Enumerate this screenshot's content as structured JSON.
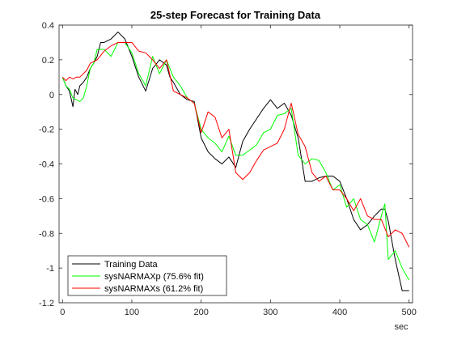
{
  "chart_data": {
    "type": "line",
    "title": "25-step Forecast for Training Data",
    "xlabel": "sec",
    "ylabel": "",
    "xlim": [
      -5,
      505
    ],
    "ylim": [
      -1.2,
      0.4
    ],
    "xticks": [
      0,
      100,
      200,
      300,
      400,
      500
    ],
    "yticks": [
      -1.2,
      -1,
      -0.8,
      -0.6,
      -0.4,
      -0.2,
      0,
      0.2,
      0.4
    ],
    "ytick_labels": [
      "-1.2",
      "-1",
      "-0.8",
      "-0.6",
      "-0.4",
      "-0.2",
      "0",
      "0.2",
      "0.4"
    ],
    "grid": false,
    "legend_position": "bottom-left",
    "series": [
      {
        "name": "Training Data",
        "color": "#000000",
        "x": [
          0,
          5,
          10,
          15,
          18,
          22,
          25,
          30,
          35,
          40,
          45,
          50,
          55,
          60,
          70,
          80,
          90,
          100,
          110,
          120,
          130,
          140,
          150,
          155,
          160,
          170,
          180,
          190,
          200,
          210,
          220,
          230,
          240,
          250,
          260,
          270,
          280,
          290,
          300,
          310,
          320,
          330,
          340,
          350,
          360,
          370,
          380,
          390,
          400,
          410,
          420,
          430,
          440,
          450,
          460,
          465,
          470,
          480,
          490,
          500
        ],
        "y": [
          0.1,
          0.05,
          0.02,
          -0.07,
          0.03,
          0.0,
          0.05,
          0.07,
          0.1,
          0.15,
          0.18,
          0.22,
          0.3,
          0.3,
          0.32,
          0.36,
          0.32,
          0.22,
          0.1,
          0.02,
          0.15,
          0.2,
          0.17,
          0.1,
          0.07,
          0.0,
          -0.03,
          -0.04,
          -0.25,
          -0.33,
          -0.37,
          -0.4,
          -0.36,
          -0.42,
          -0.27,
          -0.2,
          -0.14,
          -0.08,
          -0.03,
          -0.08,
          -0.05,
          -0.12,
          -0.25,
          -0.5,
          -0.5,
          -0.48,
          -0.47,
          -0.47,
          -0.5,
          -0.6,
          -0.72,
          -0.78,
          -0.75,
          -0.7,
          -0.66,
          -0.66,
          -0.73,
          -0.95,
          -1.13,
          -1.13
        ]
      },
      {
        "name": "sysNARMAXp (75.6% fit)",
        "color": "#00ff00",
        "x": [
          0,
          5,
          10,
          15,
          20,
          25,
          30,
          35,
          40,
          45,
          50,
          60,
          70,
          80,
          90,
          100,
          110,
          120,
          130,
          140,
          150,
          160,
          170,
          180,
          190,
          200,
          210,
          220,
          230,
          240,
          250,
          260,
          270,
          280,
          290,
          300,
          310,
          320,
          330,
          340,
          350,
          360,
          370,
          380,
          390,
          400,
          410,
          420,
          430,
          440,
          450,
          460,
          465,
          470,
          480,
          490,
          500
        ],
        "y": [
          0.1,
          0.05,
          0.03,
          -0.02,
          -0.03,
          -0.04,
          -0.02,
          0.05,
          0.15,
          0.18,
          0.26,
          0.26,
          0.22,
          0.3,
          0.3,
          0.24,
          0.12,
          0.05,
          0.22,
          0.12,
          0.2,
          0.1,
          0.05,
          -0.02,
          -0.05,
          -0.2,
          -0.25,
          -0.28,
          -0.33,
          -0.24,
          -0.35,
          -0.35,
          -0.32,
          -0.29,
          -0.22,
          -0.2,
          -0.12,
          -0.11,
          -0.08,
          -0.35,
          -0.4,
          -0.37,
          -0.38,
          -0.45,
          -0.55,
          -0.52,
          -0.65,
          -0.6,
          -0.72,
          -0.75,
          -0.85,
          -0.7,
          -0.63,
          -0.95,
          -0.9,
          -1.0,
          -1.07
        ]
      },
      {
        "name": "sysNARMAXs (61.2% fit)",
        "color": "#ff0000",
        "x": [
          0,
          5,
          10,
          15,
          20,
          25,
          30,
          35,
          40,
          50,
          60,
          70,
          80,
          90,
          100,
          110,
          120,
          130,
          140,
          150,
          160,
          170,
          180,
          190,
          200,
          210,
          220,
          230,
          240,
          250,
          260,
          270,
          280,
          290,
          300,
          310,
          320,
          330,
          340,
          350,
          360,
          370,
          380,
          390,
          400,
          410,
          420,
          430,
          440,
          450,
          460,
          470,
          480,
          490,
          500
        ],
        "y": [
          0.1,
          0.08,
          0.1,
          0.09,
          0.1,
          0.1,
          0.12,
          0.14,
          0.18,
          0.2,
          0.25,
          0.28,
          0.3,
          0.3,
          0.3,
          0.25,
          0.24,
          0.2,
          0.15,
          0.2,
          0.02,
          0.0,
          -0.02,
          -0.05,
          -0.22,
          -0.1,
          -0.13,
          -0.25,
          -0.2,
          -0.45,
          -0.49,
          -0.45,
          -0.38,
          -0.32,
          -0.3,
          -0.28,
          -0.2,
          -0.05,
          -0.23,
          -0.3,
          -0.45,
          -0.5,
          -0.47,
          -0.55,
          -0.55,
          -0.6,
          -0.67,
          -0.6,
          -0.7,
          -0.72,
          -0.72,
          -0.82,
          -0.78,
          -0.8,
          -0.88
        ]
      }
    ]
  }
}
